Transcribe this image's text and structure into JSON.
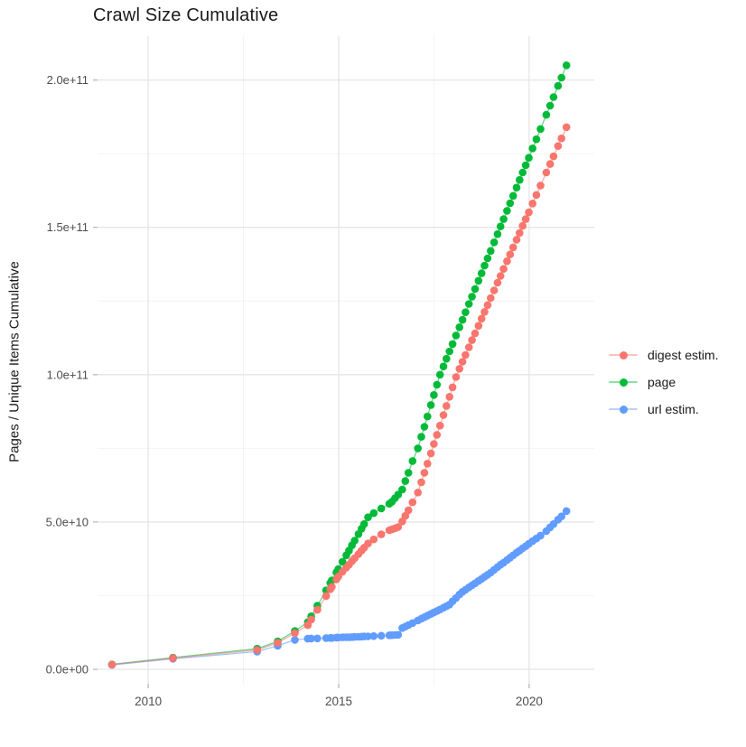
{
  "chart_data": {
    "type": "scatter",
    "title": "Crawl Size Cumulative",
    "xlabel": "",
    "ylabel": "Pages / Unique Items Cumulative",
    "value_unit": "counts in units of 1e9 (billions)",
    "grid": true,
    "x_axis": {
      "lim": [
        2008.67,
        2021.71
      ],
      "ticks": [
        {
          "v": 2010,
          "label": "2010"
        },
        {
          "v": 2015,
          "label": "2015"
        },
        {
          "v": 2020,
          "label": "2020"
        }
      ],
      "minor": [
        2012.5,
        2017.5
      ]
    },
    "y_axis": {
      "lim": [
        -4.9,
        214.9
      ],
      "ticks": [
        {
          "v": 0,
          "label": "0.0e+00"
        },
        {
          "v": 50,
          "label": "5.0e+10"
        },
        {
          "v": 100,
          "label": "1.0e+11"
        },
        {
          "v": 150,
          "label": "1.5e+11"
        },
        {
          "v": 200,
          "label": "2.0e+11"
        }
      ],
      "minor": [
        25,
        75,
        125,
        175
      ]
    },
    "legend": {
      "position": "right",
      "entries": [
        {
          "label": "digest estim.",
          "color": "#F8766D"
        },
        {
          "label": "page",
          "color": "#00BA38"
        },
        {
          "label": "url estim.",
          "color": "#619CFF"
        }
      ]
    },
    "x": [
      2009.05,
      2010.65,
      2012.86,
      2013.4,
      2013.85,
      2014.19,
      2014.28,
      2014.44,
      2014.67,
      2014.78,
      2014.82,
      2014.94,
      2014.99,
      2015.1,
      2015.2,
      2015.27,
      2015.35,
      2015.42,
      2015.52,
      2015.6,
      2015.67,
      2015.77,
      2015.92,
      2016.12,
      2016.33,
      2016.4,
      2016.48,
      2016.56,
      2016.67,
      2016.75,
      2016.83,
      2016.94,
      2017.08,
      2017.17,
      2017.25,
      2017.33,
      2017.42,
      2017.5,
      2017.58,
      2017.66,
      2017.75,
      2017.83,
      2017.91,
      2017.99,
      2018.08,
      2018.17,
      2018.25,
      2018.33,
      2018.42,
      2018.5,
      2018.58,
      2018.67,
      2018.75,
      2018.83,
      2018.91,
      2018.99,
      2019.08,
      2019.17,
      2019.25,
      2019.33,
      2019.42,
      2019.5,
      2019.58,
      2019.67,
      2019.75,
      2019.83,
      2019.91,
      2019.99,
      2020.09,
      2020.19,
      2020.3,
      2020.45,
      2020.55,
      2020.64,
      2020.76,
      2020.85,
      2020.98
    ],
    "series": [
      {
        "name": "digest estim.",
        "color": "#F8766D",
        "values_e9": [
          1.6,
          3.8,
          6.6,
          9.0,
          12.3,
          15.0,
          16.9,
          20.2,
          24.9,
          27.2,
          28.0,
          30.5,
          31.5,
          33.1,
          34.5,
          35.5,
          36.7,
          37.7,
          39.1,
          40.3,
          41.3,
          42.7,
          44.1,
          45.8,
          47.2,
          47.5,
          47.9,
          48.3,
          50.2,
          52.1,
          54.0,
          56.7,
          60.0,
          63.5,
          66.7,
          69.8,
          73.3,
          76.5,
          79.6,
          82.7,
          86.3,
          89.4,
          92.5,
          95.7,
          99.2,
          102.0,
          104.4,
          106.7,
          109.3,
          111.7,
          114.0,
          116.6,
          119.0,
          121.3,
          123.6,
          126.0,
          128.6,
          131.2,
          133.5,
          135.9,
          138.5,
          140.8,
          143.2,
          145.8,
          148.1,
          150.5,
          152.8,
          155.1,
          158.1,
          161.0,
          164.2,
          168.6,
          171.5,
          174.1,
          177.6,
          180.2,
          184.0
        ]
      },
      {
        "name": "page",
        "color": "#00BA38",
        "values_e9": [
          1.7,
          4.0,
          7.0,
          9.5,
          13.0,
          16.0,
          18.0,
          21.6,
          26.8,
          29.3,
          30.2,
          32.9,
          34.0,
          36.5,
          38.7,
          40.3,
          42.1,
          43.7,
          45.9,
          47.7,
          49.3,
          51.6,
          53.0,
          54.6,
          56.2,
          56.9,
          58.1,
          59.3,
          61.0,
          63.9,
          66.7,
          70.7,
          75.0,
          78.9,
          82.3,
          85.8,
          89.7,
          93.1,
          96.6,
          100.0,
          102.8,
          105.4,
          107.9,
          110.4,
          113.3,
          116.1,
          118.6,
          121.2,
          124.0,
          126.5,
          129.1,
          131.9,
          134.4,
          137.0,
          139.5,
          142.0,
          144.9,
          147.7,
          150.3,
          152.8,
          155.6,
          158.2,
          160.7,
          163.5,
          166.1,
          168.6,
          171.1,
          173.6,
          176.8,
          179.9,
          183.4,
          188.2,
          191.3,
          194.2,
          198.0,
          200.8,
          205.0
        ]
      },
      {
        "name": "url estim.",
        "color": "#619CFF",
        "values_e9": [
          1.5,
          3.6,
          6.0,
          8.0,
          10.0,
          10.4,
          10.45,
          10.5,
          10.6,
          10.65,
          10.65,
          10.75,
          10.8,
          10.85,
          10.9,
          10.9,
          10.95,
          11.0,
          11.05,
          11.1,
          11.15,
          11.2,
          11.3,
          11.4,
          11.55,
          11.6,
          11.65,
          11.7,
          14.0,
          14.5,
          15.0,
          15.7,
          16.6,
          17.2,
          17.7,
          18.2,
          18.8,
          19.3,
          19.8,
          20.3,
          20.9,
          21.4,
          22.0,
          23.1,
          24.2,
          25.4,
          26.3,
          27.0,
          27.8,
          28.5,
          29.2,
          30.0,
          30.7,
          31.4,
          32.1,
          32.8,
          33.8,
          34.7,
          35.5,
          36.2,
          37.1,
          37.9,
          38.7,
          39.6,
          40.3,
          41.1,
          41.8,
          42.6,
          43.5,
          44.4,
          45.4,
          46.9,
          48.2,
          49.3,
          50.8,
          51.9,
          53.7
        ]
      }
    ]
  },
  "style": {
    "grid_major_color": "#e5e5e5",
    "grid_minor_color": "#f2f2f2",
    "tick_mark_color": "#b3b3b3",
    "tick_label_color": "#4d4d4d",
    "background": "#ffffff"
  }
}
